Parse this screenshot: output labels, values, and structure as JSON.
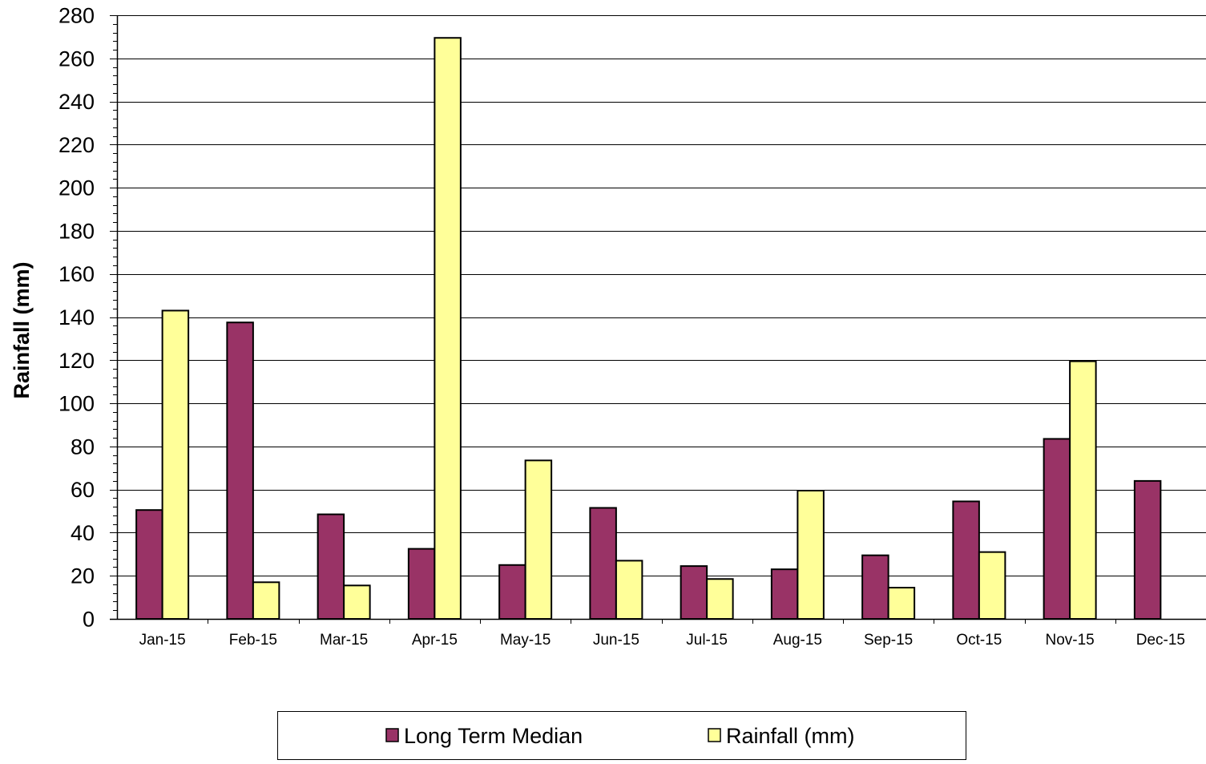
{
  "chart_data": {
    "type": "bar",
    "title": "",
    "xlabel": "",
    "ylabel": "Rainfall (mm)",
    "ylim": [
      0,
      280
    ],
    "y_major_step": 20,
    "y_minor_step": 4,
    "grid": "horizontal major gridlines",
    "legend_position": "bottom",
    "categories": [
      "Jan-15",
      "Feb-15",
      "Mar-15",
      "Apr-15",
      "May-15",
      "Jun-15",
      "Jul-15",
      "Aug-15",
      "Sep-15",
      "Oct-15",
      "Nov-15",
      "Dec-15"
    ],
    "series": [
      {
        "name": "Long Term Median",
        "color": "#993366",
        "values": [
          50.5,
          137.5,
          48.5,
          32.5,
          25,
          51.5,
          24.5,
          23,
          29.5,
          54.5,
          83.5,
          64
        ]
      },
      {
        "name": "Rainfall (mm)",
        "color": "#ffff99",
        "values": [
          143,
          17,
          15.5,
          269.5,
          73.5,
          27,
          18.5,
          59.5,
          14.5,
          31,
          119.5,
          null
        ]
      }
    ]
  }
}
